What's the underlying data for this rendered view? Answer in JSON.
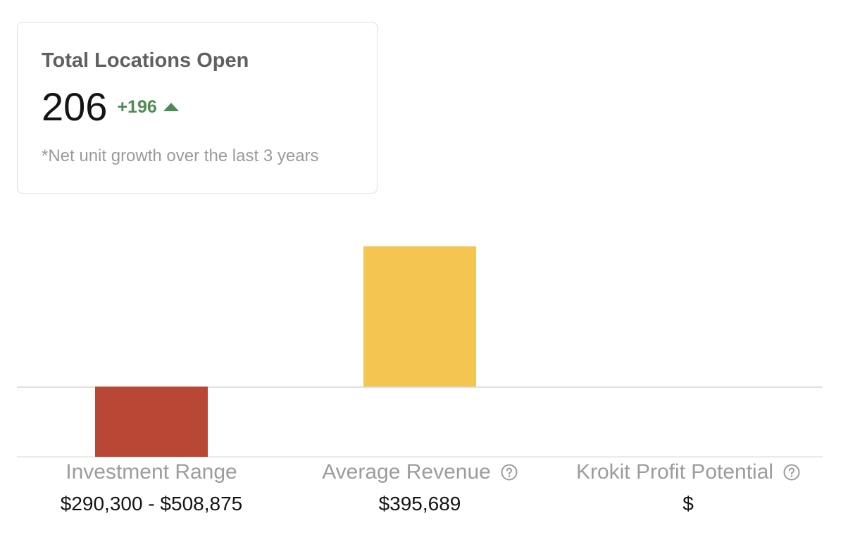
{
  "card": {
    "title": "Total Locations Open",
    "value": "206",
    "change": "+196",
    "change_icon": "triangle-up-icon",
    "note": "*Net unit growth over the last 3 years",
    "accent": "#4e8a54"
  },
  "chart_data": {
    "type": "bar",
    "categories": [
      "Investment Range",
      "Average Revenue",
      "Krokit Profit Potential"
    ],
    "values": [
      -100,
      200,
      0
    ],
    "value_labels": [
      "$290,300 - $508,875",
      "$395,689",
      "$"
    ],
    "colors": [
      "#b84735",
      "#f5c552",
      "#cccccc"
    ],
    "help_icons": [
      false,
      true,
      true
    ],
    "ylim": [
      -100,
      200
    ],
    "title": "",
    "xlabel": "",
    "ylabel": ""
  }
}
